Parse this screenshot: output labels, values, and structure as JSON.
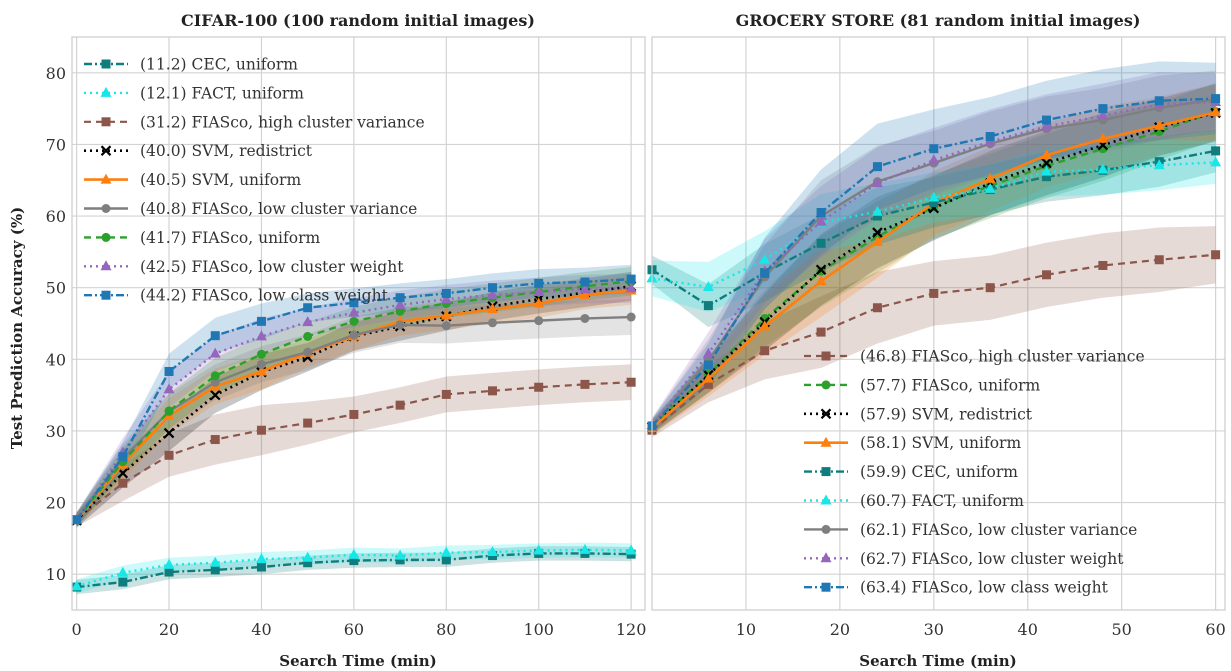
{
  "chart_data": [
    {
      "type": "line",
      "title": "CIFAR-100 (100 random initial images)",
      "xlabel": "Search Time (min)",
      "ylabel": "Test Prediction Accuracy (%)",
      "xlim": [
        -1,
        123
      ],
      "ylim": [
        5,
        85
      ],
      "xticks": [
        "0",
        "20",
        "40",
        "60",
        "80",
        "100",
        "120"
      ],
      "yticks": [
        "10",
        "20",
        "30",
        "40",
        "50",
        "60",
        "70",
        "80"
      ],
      "grid": true,
      "legend_position": "upper-left",
      "x": [
        0,
        10,
        20,
        30,
        40,
        50,
        60,
        70,
        80,
        90,
        100,
        110,
        120
      ],
      "series": [
        {
          "name": "(11.2) CEC, uniform",
          "key": "cec",
          "values": [
            8.2,
            8.9,
            10.3,
            10.6,
            11.0,
            11.6,
            11.9,
            12.0,
            12.0,
            12.6,
            12.9,
            12.9,
            12.8
          ],
          "band": [
            1.0,
            1.0,
            1.0,
            1.0,
            1.0,
            1.0,
            1.0,
            1.0,
            1.0,
            1.0,
            1.0,
            1.0,
            1.0
          ]
        },
        {
          "name": "(12.1) FACT, uniform",
          "key": "fact",
          "values": [
            8.3,
            10.2,
            11.3,
            11.6,
            12.1,
            12.3,
            12.7,
            12.6,
            13.0,
            13.1,
            13.3,
            13.4,
            13.3
          ],
          "band": [
            1.0,
            1.0,
            1.0,
            1.0,
            1.0,
            1.0,
            1.0,
            1.0,
            1.0,
            1.0,
            1.0,
            1.0,
            1.0
          ]
        },
        {
          "name": "(31.2) FIASco, high cluster variance",
          "key": "fias_hcv",
          "values": [
            17.6,
            22.7,
            26.6,
            28.8,
            30.1,
            31.1,
            32.3,
            33.6,
            35.1,
            35.6,
            36.1,
            36.5,
            36.8
          ],
          "band": [
            1.0,
            2.5,
            3.0,
            3.5,
            3.5,
            3.0,
            2.5,
            2.5,
            2.5,
            2.5,
            2.5,
            2.5,
            2.5
          ]
        },
        {
          "name": "(40.0) SVM, redistrict",
          "key": "svm_red",
          "values": [
            17.5,
            24.1,
            29.7,
            35.0,
            38.2,
            40.3,
            43.2,
            44.6,
            46.0,
            47.4,
            48.4,
            49.3,
            50.2
          ],
          "band": [
            1.0,
            2.0,
            2.5,
            2.5,
            2.5,
            2.0,
            2.0,
            2.0,
            2.0,
            2.0,
            2.0,
            2.0,
            2.0
          ]
        },
        {
          "name": "(40.5) SVM, uniform",
          "key": "svm_uni",
          "values": [
            17.6,
            25.3,
            32.1,
            36.2,
            38.3,
            40.9,
            43.2,
            45.3,
            46.1,
            47.0,
            47.8,
            49.0,
            49.6
          ],
          "band": [
            1.0,
            2.0,
            2.5,
            2.5,
            2.5,
            2.0,
            2.0,
            2.0,
            2.0,
            2.0,
            2.0,
            2.0,
            2.0
          ]
        },
        {
          "name": "(40.8) FIASco, low cluster variance",
          "key": "fias_lcv",
          "values": [
            17.6,
            26.2,
            32.7,
            36.8,
            39.3,
            41.0,
            43.4,
            44.8,
            44.7,
            45.1,
            45.4,
            45.7,
            45.9
          ],
          "band": [
            1.0,
            2.0,
            2.5,
            2.5,
            2.5,
            2.5,
            2.5,
            2.5,
            2.5,
            2.5,
            2.5,
            2.5,
            2.5
          ]
        },
        {
          "name": "(41.7) FIASco, uniform",
          "key": "fias_uni",
          "values": [
            17.6,
            25.7,
            32.8,
            37.7,
            40.7,
            43.2,
            45.3,
            46.7,
            47.8,
            48.6,
            49.4,
            50.2,
            50.9
          ],
          "band": [
            1.0,
            2.0,
            2.5,
            2.5,
            2.5,
            2.0,
            2.0,
            2.0,
            2.0,
            2.0,
            2.0,
            2.0,
            2.0
          ]
        },
        {
          "name": "(42.5) FIASco, low cluster weight",
          "key": "fias_lcw",
          "values": [
            17.6,
            27.0,
            35.8,
            40.8,
            43.2,
            45.2,
            46.5,
            47.6,
            48.4,
            49.0,
            49.4,
            49.8,
            49.9
          ],
          "band": [
            1.0,
            2.0,
            2.5,
            2.5,
            2.5,
            2.0,
            2.0,
            2.0,
            2.0,
            2.0,
            2.0,
            2.0,
            2.0
          ]
        },
        {
          "name": "(44.2) FIASco, low class weight",
          "key": "fias_lclass",
          "values": [
            17.6,
            26.4,
            38.3,
            43.3,
            45.3,
            47.2,
            47.9,
            48.6,
            49.2,
            50.0,
            50.6,
            50.8,
            51.2
          ],
          "band": [
            1.0,
            2.0,
            2.5,
            2.5,
            2.5,
            2.0,
            2.0,
            2.0,
            2.0,
            2.0,
            2.0,
            2.0,
            2.0
          ]
        }
      ]
    },
    {
      "type": "line",
      "title": "GROCERY STORE (81 random initial images)",
      "xlabel": "Search Time (min)",
      "ylabel": "",
      "xlim": [
        0,
        61
      ],
      "ylim": [
        5,
        85
      ],
      "xticks": [
        "10",
        "20",
        "30",
        "40",
        "50",
        "60"
      ],
      "yticks": [],
      "grid": true,
      "legend_position": "lower-right",
      "x": [
        0,
        6,
        12,
        18,
        24,
        30,
        36,
        42,
        48,
        54,
        60
      ],
      "series": [
        {
          "name": "(46.8) FIASco, high cluster variance",
          "key": "fias_hcv",
          "values": [
            30.1,
            36.5,
            41.2,
            43.8,
            47.2,
            49.2,
            50.0,
            51.8,
            53.1,
            53.9,
            54.6
          ],
          "band": [
            1.0,
            2.5,
            4.0,
            5.0,
            5.0,
            4.5,
            4.5,
            4.5,
            4.5,
            4.5,
            4.0
          ]
        },
        {
          "name": "(57.7) FIASco, uniform",
          "key": "fias_uni",
          "values": [
            30.6,
            37.9,
            45.7,
            52.3,
            57.1,
            61.3,
            64.2,
            67.0,
            69.4,
            71.8,
            74.6
          ],
          "band": [
            1.0,
            2.5,
            4.0,
            5.0,
            5.0,
            4.5,
            4.5,
            4.5,
            4.5,
            4.0,
            4.0
          ]
        },
        {
          "name": "(57.9) SVM, redistrict",
          "key": "svm_red",
          "values": [
            30.5,
            37.8,
            45.2,
            52.5,
            57.7,
            61.1,
            64.6,
            67.4,
            69.9,
            72.4,
            74.4
          ],
          "band": [
            1.0,
            2.5,
            4.0,
            5.0,
            5.0,
            4.5,
            4.5,
            4.5,
            4.5,
            4.0,
            4.0
          ]
        },
        {
          "name": "(58.1) SVM, uniform",
          "key": "svm_uni",
          "values": [
            30.4,
            37.3,
            44.6,
            50.9,
            56.4,
            61.8,
            65.2,
            68.5,
            70.8,
            72.6,
            74.5
          ],
          "band": [
            1.0,
            2.5,
            4.0,
            5.0,
            5.0,
            4.5,
            4.5,
            4.5,
            4.5,
            4.0,
            4.0
          ]
        },
        {
          "name": "(59.9) CEC, uniform",
          "key": "cec",
          "values": [
            52.5,
            47.5,
            52.1,
            56.2,
            60.0,
            61.9,
            63.7,
            65.5,
            66.4,
            67.6,
            69.1
          ],
          "band": [
            2.0,
            3.0,
            4.0,
            4.0,
            4.0,
            3.5,
            3.5,
            3.5,
            3.5,
            3.5,
            3.0
          ]
        },
        {
          "name": "(60.7) FACT, uniform",
          "key": "fact",
          "values": [
            51.3,
            50.1,
            53.9,
            59.1,
            60.6,
            62.6,
            63.8,
            66.2,
            66.5,
            67.1,
            67.5
          ],
          "band": [
            2.5,
            3.5,
            4.0,
            4.0,
            4.0,
            3.5,
            3.5,
            3.5,
            3.5,
            3.5,
            3.0
          ]
        },
        {
          "name": "(62.1) FIASco, low cluster variance",
          "key": "fias_lcv",
          "values": [
            30.7,
            39.8,
            51.5,
            60.0,
            64.8,
            67.4,
            70.1,
            72.2,
            73.4,
            75.1,
            76.3
          ],
          "band": [
            1.0,
            3.0,
            4.5,
            5.0,
            5.0,
            4.5,
            4.5,
            4.5,
            4.5,
            4.5,
            4.0
          ]
        },
        {
          "name": "(62.7) FIASco, low cluster weight",
          "key": "fias_lcw",
          "values": [
            30.8,
            40.8,
            52.3,
            59.2,
            64.6,
            67.8,
            70.4,
            72.5,
            74.0,
            75.6,
            75.9
          ],
          "band": [
            1.0,
            3.0,
            4.5,
            5.0,
            5.0,
            4.5,
            4.5,
            4.5,
            4.5,
            4.5,
            4.0
          ]
        },
        {
          "name": "(63.4) FIASco, low class weight",
          "key": "fias_lclass",
          "values": [
            30.7,
            39.2,
            52.0,
            60.5,
            66.9,
            69.4,
            71.1,
            73.4,
            75.0,
            76.1,
            76.4
          ],
          "band": [
            1.0,
            3.0,
            5.0,
            6.0,
            6.0,
            5.5,
            5.5,
            5.5,
            5.5,
            5.5,
            5.0
          ]
        }
      ]
    }
  ],
  "styles": {
    "cec": {
      "color": "#0f7d7d",
      "dash": "8,3,2,3",
      "marker": "square",
      "width": 2.4
    },
    "fact": {
      "color": "#19e6e6",
      "dash": "2,4",
      "marker": "triangle",
      "width": 2.4
    },
    "fias_hcv": {
      "color": "#8c564b",
      "dash": "7,5",
      "marker": "square",
      "width": 2.2
    },
    "svm_red": {
      "color": "#000000",
      "dash": "2,4",
      "marker": "x",
      "width": 2.6
    },
    "svm_uni": {
      "color": "#ff7f0e",
      "dash": "",
      "marker": "triangle",
      "width": 2.6
    },
    "fias_lcv": {
      "color": "#7f7f7f",
      "dash": "",
      "marker": "circle",
      "width": 2.4
    },
    "fias_uni": {
      "color": "#2ca02c",
      "dash": "7,5",
      "marker": "circle",
      "width": 2.4
    },
    "fias_lcw": {
      "color": "#9467bd",
      "dash": "2,4",
      "marker": "triangle",
      "width": 2.4
    },
    "fias_lclass": {
      "color": "#1f77b4",
      "dash": "8,3,2,3",
      "marker": "square",
      "width": 2.4
    }
  }
}
